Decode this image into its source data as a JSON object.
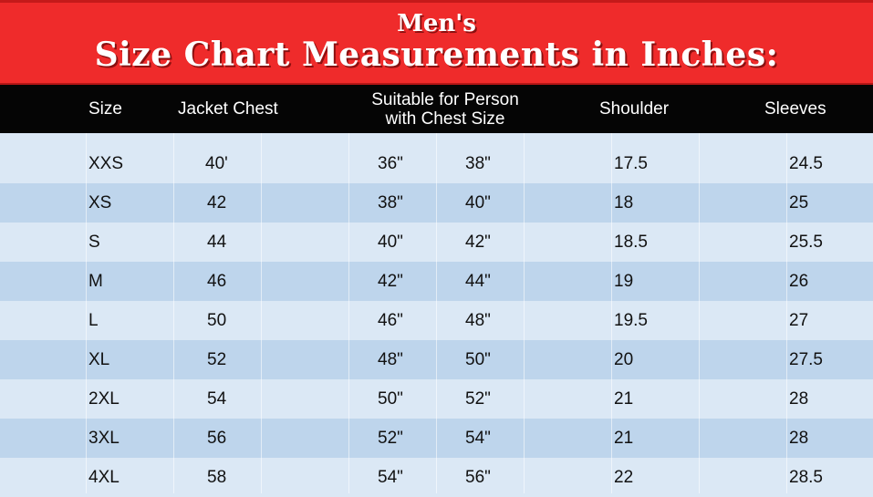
{
  "title": {
    "line1": "Men's",
    "line2": "Size Chart Measurements in Inches:"
  },
  "headers": {
    "size": "Size",
    "jacket_chest": "Jacket Chest",
    "suitable_line1": "Suitable for Person",
    "suitable_line2": "with Chest Size",
    "shoulder": "Shoulder",
    "sleeves": "Sleeves"
  },
  "colors": {
    "banner": "#ef2b2b",
    "header": "#050505",
    "row_light": "#dbe8f5",
    "row_dark": "#bed5ec"
  },
  "rows": [
    {
      "size": "XXS",
      "jacket_chest": "40'",
      "chest_from": "36\"",
      "chest_to": "38\"",
      "shoulder": "17.5",
      "sleeves": "24.5"
    },
    {
      "size": "XS",
      "jacket_chest": "42",
      "chest_from": "38\"",
      "chest_to": "40\"",
      "shoulder": "18",
      "sleeves": "25"
    },
    {
      "size": "S",
      "jacket_chest": "44",
      "chest_from": "40\"",
      "chest_to": "42\"",
      "shoulder": "18.5",
      "sleeves": "25.5"
    },
    {
      "size": "M",
      "jacket_chest": "46",
      "chest_from": "42\"",
      "chest_to": "44\"",
      "shoulder": "19",
      "sleeves": "26"
    },
    {
      "size": "L",
      "jacket_chest": "50",
      "chest_from": "46\"",
      "chest_to": "48\"",
      "shoulder": "19.5",
      "sleeves": "27"
    },
    {
      "size": "XL",
      "jacket_chest": "52",
      "chest_from": "48\"",
      "chest_to": "50\"",
      "shoulder": "20",
      "sleeves": "27.5"
    },
    {
      "size": "2XL",
      "jacket_chest": "54",
      "chest_from": "50\"",
      "chest_to": "52\"",
      "shoulder": "21",
      "sleeves": "28"
    },
    {
      "size": "3XL",
      "jacket_chest": "56",
      "chest_from": "52\"",
      "chest_to": "54\"",
      "shoulder": "21",
      "sleeves": "28"
    },
    {
      "size": "4XL",
      "jacket_chest": "58",
      "chest_from": "54\"",
      "chest_to": "56\"",
      "shoulder": "22",
      "sleeves": "28.5"
    }
  ]
}
